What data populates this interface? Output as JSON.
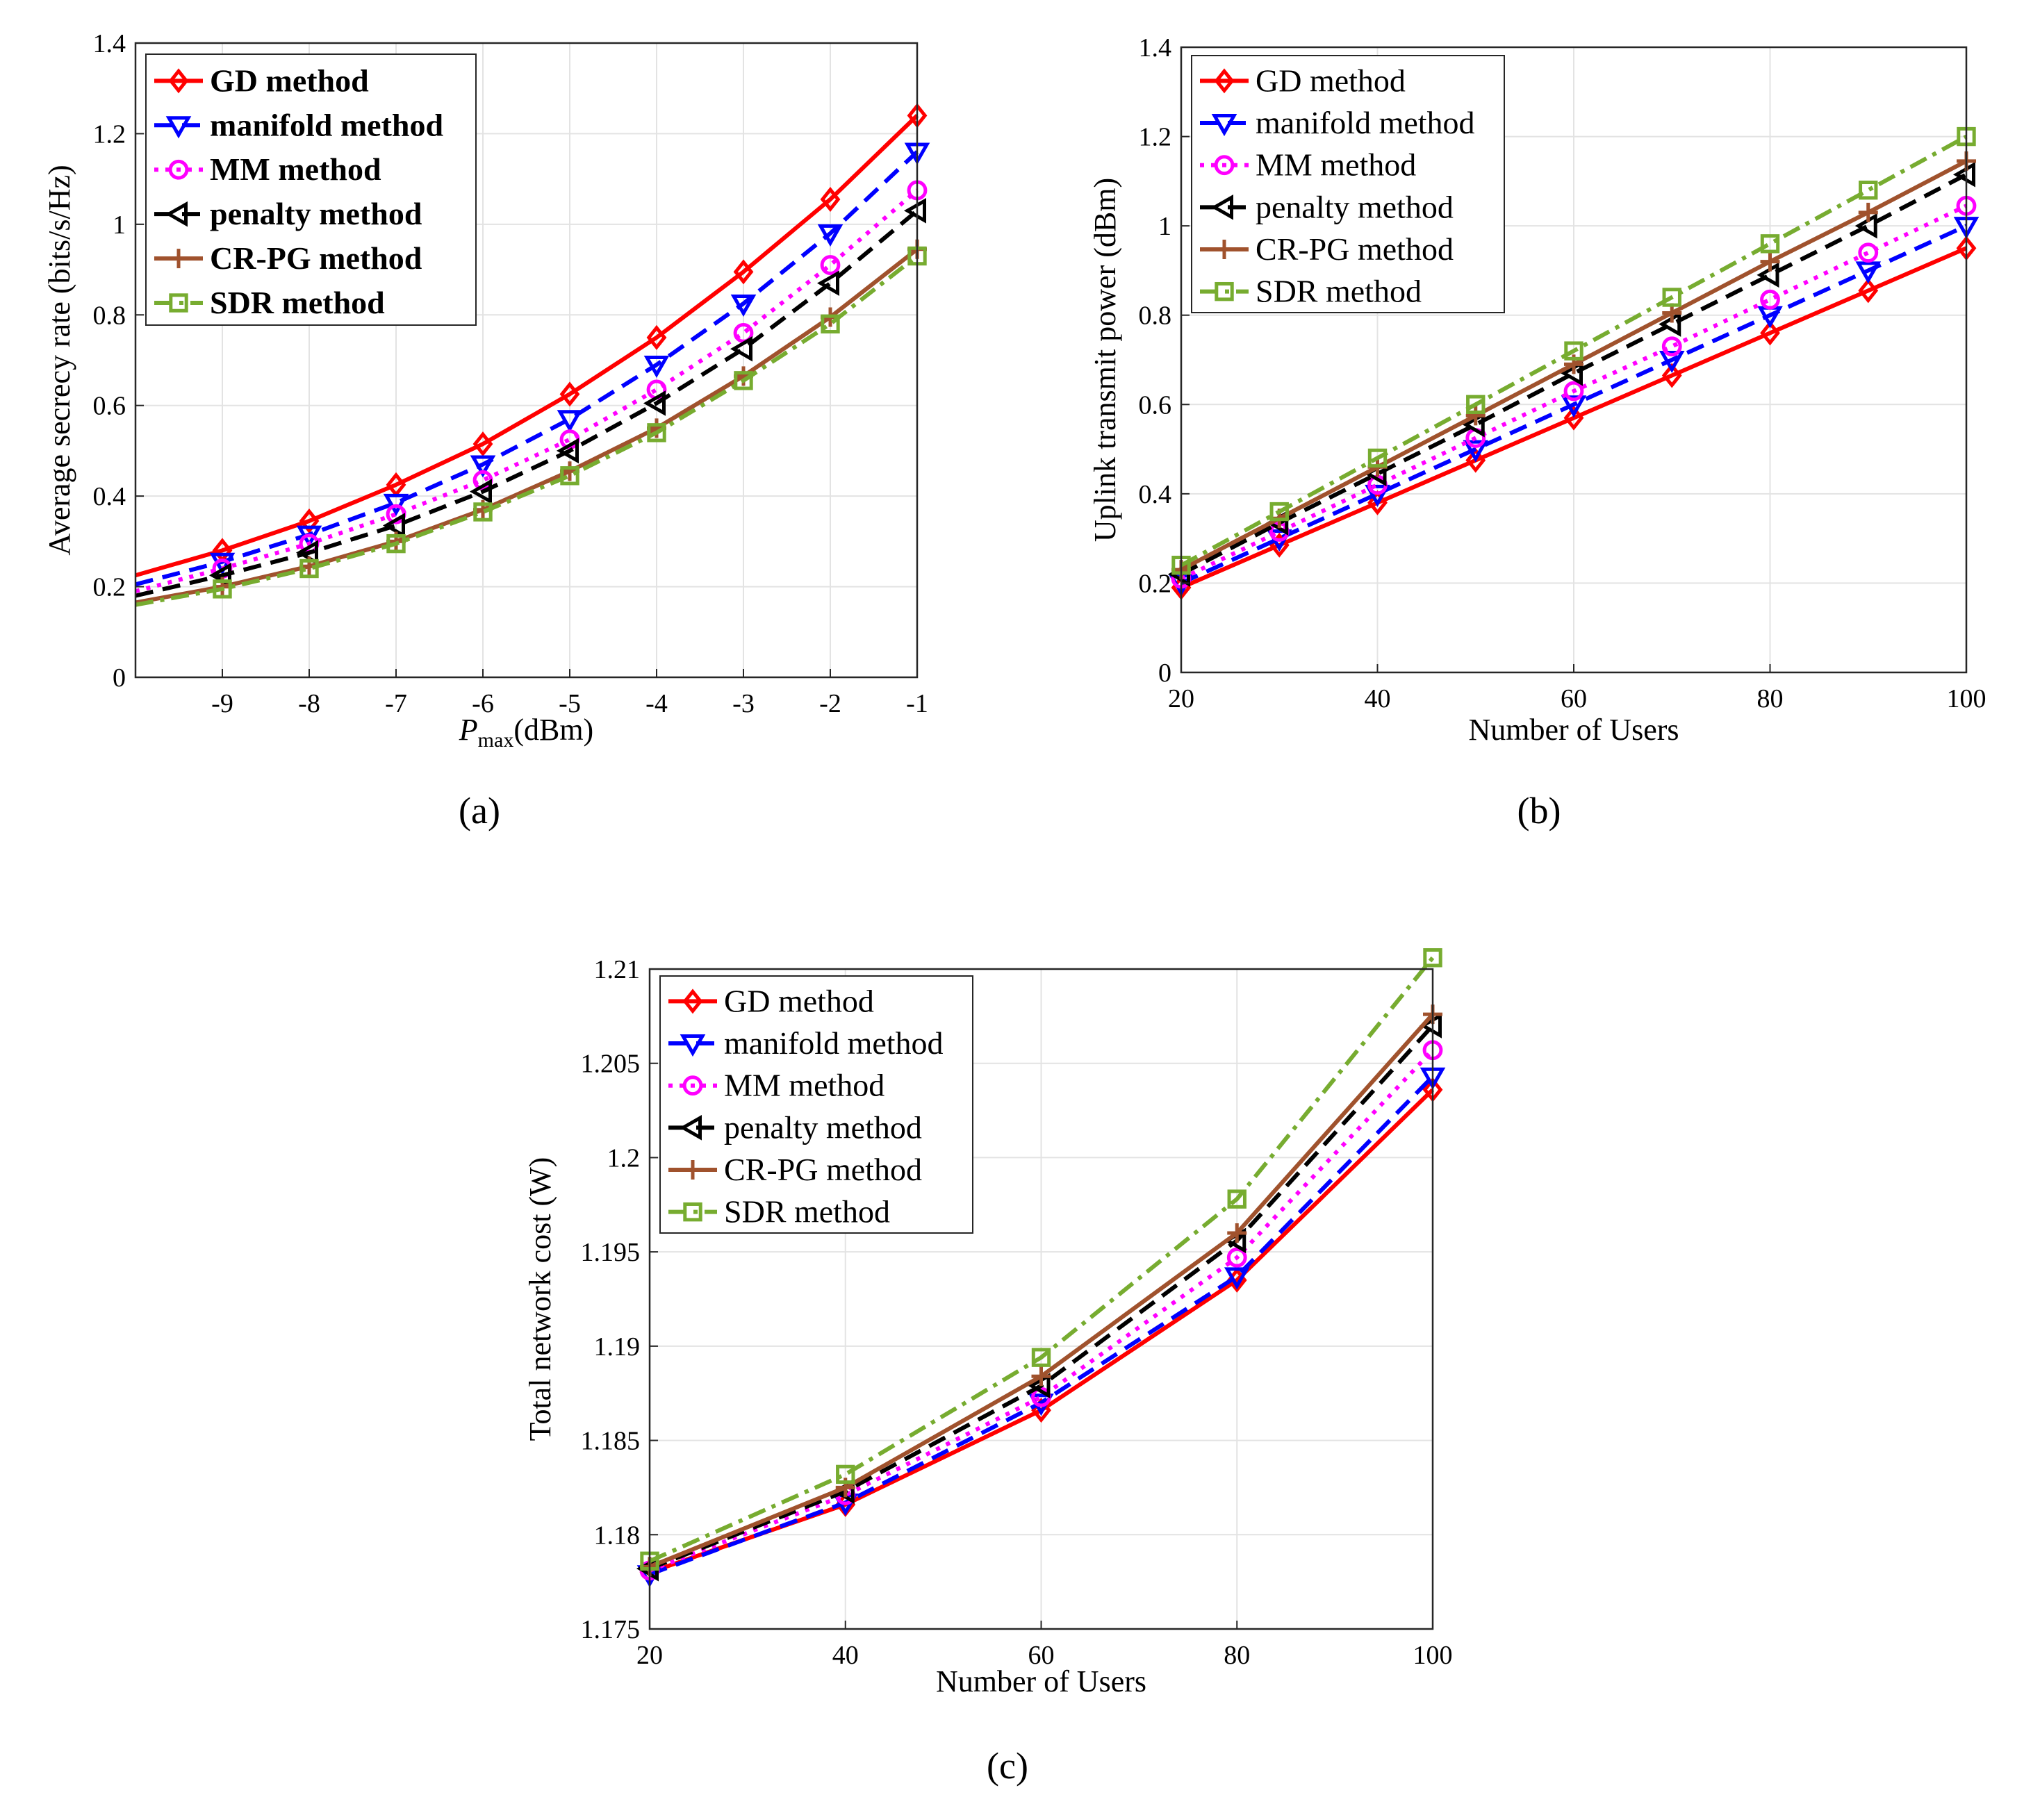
{
  "figure": {
    "legend_entries": [
      "GD method",
      "manifold method",
      "MM method",
      "penalty method",
      "CR-PG method",
      "SDR method"
    ]
  },
  "series_style": [
    {
      "name": "GD method",
      "color": "#ff0000",
      "marker": "diamond",
      "dash": "solid"
    },
    {
      "name": "manifold method",
      "color": "#0000ff",
      "marker": "triangle-down",
      "dash": "dashed"
    },
    {
      "name": "MM method",
      "color": "#ff00ff",
      "marker": "circle",
      "dash": "dotted"
    },
    {
      "name": "penalty method",
      "color": "#000000",
      "marker": "triangle-left",
      "dash": "dashed"
    },
    {
      "name": "CR-PG method",
      "color": "#a0522d",
      "marker": "plus",
      "dash": "solid"
    },
    {
      "name": "SDR method",
      "color": "#77ac30",
      "marker": "square",
      "dash": "dashdot"
    }
  ],
  "chart_data": [
    {
      "id": "a",
      "type": "line",
      "caption": "(a)",
      "xlabel_main": "P",
      "xlabel_sub": "max",
      "xlabel_unit": "(dBm)",
      "ylabel": "Average secrecy rate (bits/s/Hz)",
      "xlim": [
        -10,
        -1
      ],
      "ylim": [
        0,
        1.4
      ],
      "xticks": [
        -9,
        -8,
        -7,
        -6,
        -5,
        -4,
        -3,
        -2,
        -1
      ],
      "xtick_labels": [
        "-9",
        "-8",
        "-7",
        "-6",
        "-5",
        "-4",
        "-3",
        "-2",
        "-1"
      ],
      "yticks": [
        0,
        0.2,
        0.4,
        0.6,
        0.8,
        1,
        1.2,
        1.4
      ],
      "ytick_labels": [
        "0",
        "0.2",
        "0.4",
        "0.6",
        "0.8",
        "1",
        "1.2",
        "1.4"
      ],
      "legend_position": "top-left",
      "legend_bold": true,
      "x": [
        -9,
        -8,
        -7,
        -6,
        -5,
        -4,
        -3,
        -2,
        -1
      ],
      "series": [
        {
          "name": "GD method",
          "line_start": [
            -10,
            0.225
          ],
          "values": [
            0.28,
            0.345,
            0.425,
            0.515,
            0.625,
            0.75,
            0.895,
            1.055,
            1.24
          ]
        },
        {
          "name": "manifold method",
          "line_start": [
            -10,
            0.205
          ],
          "values": [
            0.255,
            0.315,
            0.385,
            0.47,
            0.57,
            0.69,
            0.825,
            0.98,
            1.16
          ]
        },
        {
          "name": "MM method",
          "line_start": [
            -10,
            0.19
          ],
          "values": [
            0.24,
            0.295,
            0.36,
            0.435,
            0.525,
            0.635,
            0.76,
            0.91,
            1.075
          ]
        },
        {
          "name": "penalty method",
          "line_start": [
            -10,
            0.18
          ],
          "values": [
            0.225,
            0.275,
            0.335,
            0.41,
            0.5,
            0.605,
            0.725,
            0.87,
            1.03
          ]
        },
        {
          "name": "CR-PG method",
          "line_start": [
            -10,
            0.165
          ],
          "values": [
            0.2,
            0.245,
            0.3,
            0.37,
            0.455,
            0.55,
            0.665,
            0.795,
            0.945
          ]
        },
        {
          "name": "SDR method",
          "line_start": [
            -10,
            0.16
          ],
          "values": [
            0.195,
            0.24,
            0.295,
            0.365,
            0.445,
            0.54,
            0.655,
            0.78,
            0.93
          ]
        }
      ]
    },
    {
      "id": "b",
      "type": "line",
      "caption": "(b)",
      "xlabel_main": "Number of Users",
      "ylabel": "Uplink transmit power (dBm)",
      "xlim": [
        20,
        100
      ],
      "ylim": [
        0,
        1.4
      ],
      "xticks": [
        20,
        40,
        60,
        80,
        100
      ],
      "xtick_labels": [
        "20",
        "40",
        "60",
        "80",
        "100"
      ],
      "yticks": [
        0,
        0.2,
        0.4,
        0.6,
        0.8,
        1,
        1.2,
        1.4
      ],
      "ytick_labels": [
        "0",
        "0.2",
        "0.4",
        "0.6",
        "0.8",
        "1",
        "1.2",
        "1.4"
      ],
      "legend_position": "top-left",
      "legend_bold": false,
      "x": [
        20,
        30,
        40,
        50,
        60,
        70,
        80,
        90,
        100
      ],
      "series": [
        {
          "name": "GD method",
          "values": [
            0.19,
            0.285,
            0.38,
            0.475,
            0.57,
            0.665,
            0.76,
            0.855,
            0.95
          ]
        },
        {
          "name": "manifold method",
          "values": [
            0.2,
            0.3,
            0.4,
            0.5,
            0.6,
            0.7,
            0.8,
            0.9,
            1.0
          ]
        },
        {
          "name": "MM method",
          "values": [
            0.21,
            0.315,
            0.42,
            0.525,
            0.63,
            0.73,
            0.835,
            0.94,
            1.045
          ]
        },
        {
          "name": "penalty method",
          "values": [
            0.22,
            0.335,
            0.445,
            0.555,
            0.67,
            0.78,
            0.89,
            1.0,
            1.115
          ]
        },
        {
          "name": "CR-PG method",
          "values": [
            0.23,
            0.345,
            0.46,
            0.575,
            0.69,
            0.805,
            0.92,
            1.03,
            1.145
          ]
        },
        {
          "name": "SDR method",
          "values": [
            0.24,
            0.36,
            0.48,
            0.6,
            0.72,
            0.84,
            0.96,
            1.08,
            1.2
          ]
        }
      ]
    },
    {
      "id": "c",
      "type": "line",
      "caption": "(c)",
      "xlabel_main": "Number of Users",
      "ylabel": "Total network cost (W)",
      "xlim": [
        20,
        100
      ],
      "ylim": [
        1.175,
        1.21
      ],
      "xticks": [
        20,
        40,
        60,
        80,
        100
      ],
      "xtick_labels": [
        "20",
        "40",
        "60",
        "80",
        "100"
      ],
      "yticks": [
        1.175,
        1.18,
        1.185,
        1.19,
        1.195,
        1.2,
        1.205,
        1.21
      ],
      "ytick_labels": [
        "1.175",
        "1.18",
        "1.185",
        "1.19",
        "1.195",
        "1.2",
        "1.205",
        "1.21"
      ],
      "legend_position": "top-left",
      "legend_bold": false,
      "x": [
        20,
        40,
        60,
        80,
        100
      ],
      "series": [
        {
          "name": "GD method",
          "values": [
            1.178,
            1.1816,
            1.1866,
            1.1935,
            1.2036
          ]
        },
        {
          "name": "manifold method",
          "values": [
            1.1779,
            1.1817,
            1.187,
            1.1937,
            1.2043
          ]
        },
        {
          "name": "MM method",
          "values": [
            1.1781,
            1.1821,
            1.1873,
            1.1947,
            1.2057
          ]
        },
        {
          "name": "penalty method",
          "values": [
            1.1782,
            1.1823,
            1.1879,
            1.1956,
            1.207
          ]
        },
        {
          "name": "CR-PG method",
          "values": [
            1.1783,
            1.1825,
            1.1884,
            1.196,
            1.2076
          ]
        },
        {
          "name": "SDR method",
          "values": [
            1.1786,
            1.1832,
            1.1894,
            1.1978,
            1.2106
          ]
        }
      ]
    }
  ]
}
